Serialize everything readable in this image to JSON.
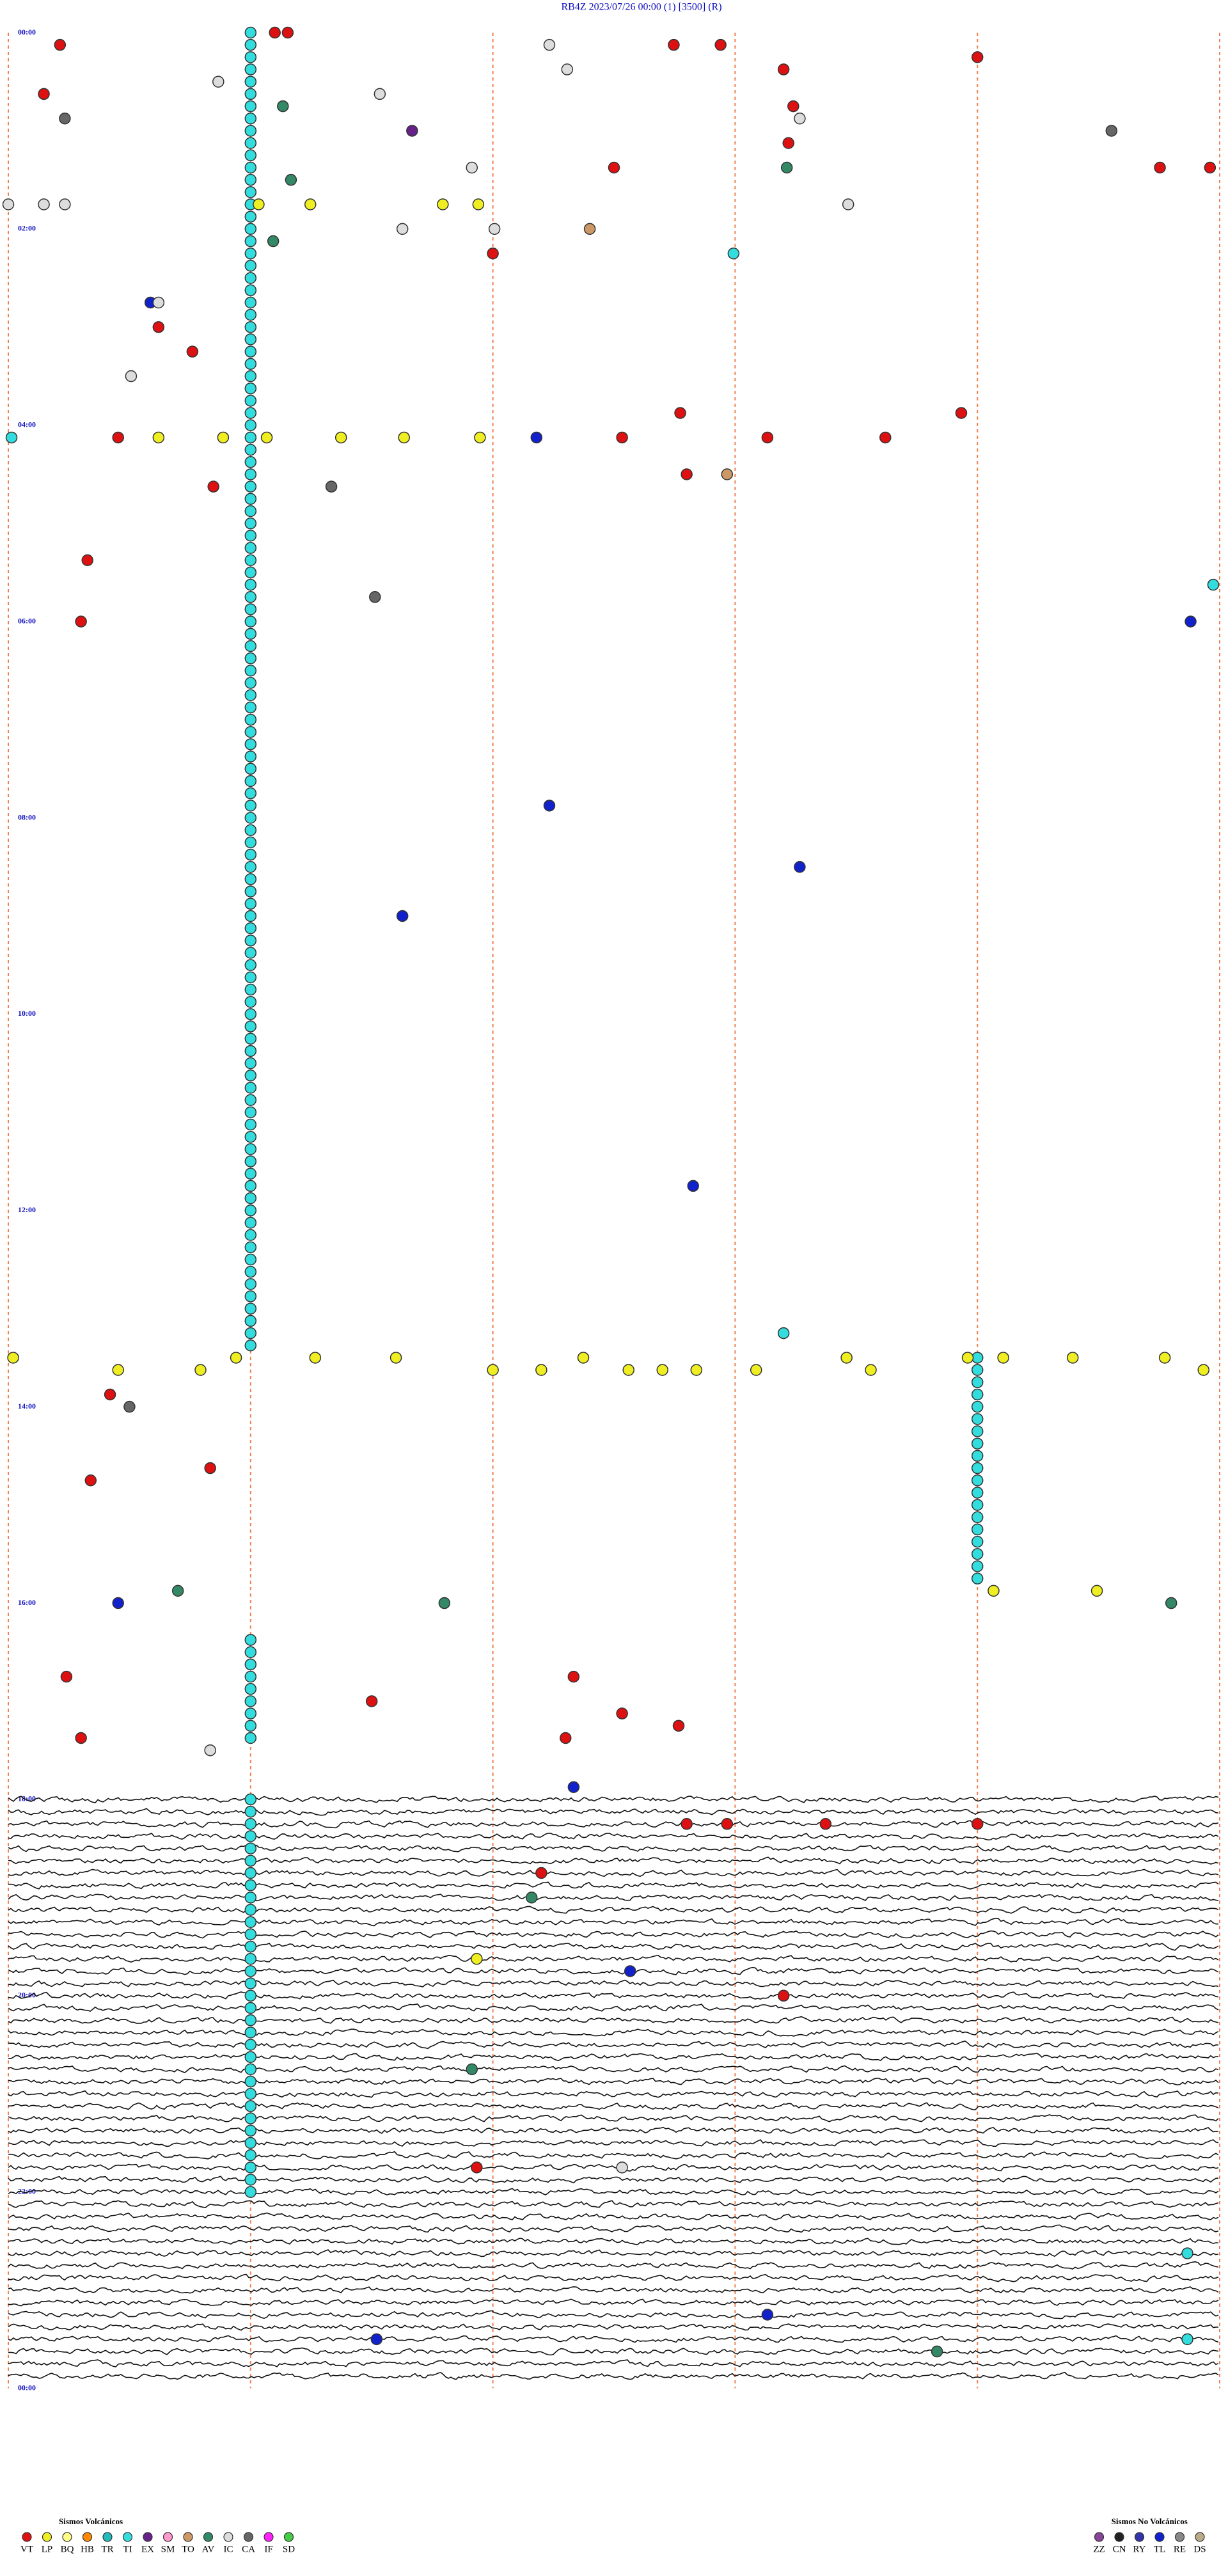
{
  "chart_data": {
    "type": "helicorder",
    "title": "RB4Z    2023/07/26 00:00    (1)    [3500]    (R)",
    "time_labels": [
      "00:00",
      "02:00",
      "04:00",
      "06:00",
      "08:00",
      "10:00",
      "12:00",
      "14:00",
      "16:00",
      "18:00",
      "20:00",
      "22:00",
      "00:00"
    ],
    "legend_volcanic": {
      "title": "Sismos Volcánicos",
      "types": [
        {
          "code": "VT",
          "color": "#dd1111"
        },
        {
          "code": "LP",
          "color": "#eeee22"
        },
        {
          "code": "BQ",
          "color": "#ffff88"
        },
        {
          "code": "HB",
          "color": "#ff8800"
        },
        {
          "code": "TR",
          "color": "#22bbbb"
        },
        {
          "code": "TI",
          "color": "#33dddd"
        },
        {
          "code": "EX",
          "color": "#662288"
        },
        {
          "code": "SM",
          "color": "#ff99cc"
        },
        {
          "code": "TO",
          "color": "#cc9966"
        },
        {
          "code": "AV",
          "color": "#338866"
        },
        {
          "code": "IC",
          "color": "#dddddd"
        },
        {
          "code": "CA",
          "color": "#666666"
        },
        {
          "code": "IF",
          "color": "#ff22ff"
        },
        {
          "code": "SD",
          "color": "#44cc44"
        }
      ]
    },
    "legend_non_volcanic": {
      "title": "Sismos No Volcánicos",
      "types": [
        {
          "code": "ZZ",
          "color": "#884499"
        },
        {
          "code": "CN",
          "color": "#222222"
        },
        {
          "code": "RY",
          "color": "#3333aa"
        },
        {
          "code": "TL",
          "color": "#1122cc"
        },
        {
          "code": "RE",
          "color": "#888888"
        },
        {
          "code": "DS",
          "color": "#bbaa88"
        }
      ]
    },
    "events": [
      [
        0,
        1.5,
        "TI"
      ],
      [
        1,
        1.5,
        "TI"
      ],
      [
        2,
        1.5,
        "TI"
      ],
      [
        3,
        1.5,
        "TI"
      ],
      [
        4,
        1.5,
        "TI"
      ],
      [
        5,
        1.5,
        "TI"
      ],
      [
        6,
        1.5,
        "TI"
      ],
      [
        7,
        1.5,
        "TI"
      ],
      [
        8,
        1.5,
        "TI"
      ],
      [
        9,
        1.5,
        "TI"
      ],
      [
        10,
        1.5,
        "TI"
      ],
      [
        11,
        1.5,
        "TI"
      ],
      [
        12,
        1.5,
        "TI"
      ],
      [
        13,
        1.5,
        "TI"
      ],
      [
        14,
        1.5,
        "TI"
      ],
      [
        15,
        1.5,
        "TI"
      ],
      [
        16,
        1.5,
        "TI"
      ],
      [
        17,
        1.5,
        "TI"
      ],
      [
        18,
        1.5,
        "TI"
      ],
      [
        19,
        1.5,
        "TI"
      ],
      [
        20,
        1.5,
        "TI"
      ],
      [
        21,
        1.5,
        "TI"
      ],
      [
        22,
        1.5,
        "TI"
      ],
      [
        23,
        1.5,
        "TI"
      ],
      [
        24,
        1.5,
        "TI"
      ],
      [
        25,
        1.5,
        "TI"
      ],
      [
        26,
        1.5,
        "TI"
      ],
      [
        27,
        1.5,
        "TI"
      ],
      [
        28,
        1.5,
        "TI"
      ],
      [
        29,
        1.5,
        "TI"
      ],
      [
        30,
        1.5,
        "TI"
      ],
      [
        31,
        1.5,
        "TI"
      ],
      [
        32,
        1.5,
        "TI"
      ],
      [
        33,
        1.5,
        "TI"
      ],
      [
        34,
        1.5,
        "TI"
      ],
      [
        35,
        1.5,
        "TI"
      ],
      [
        36,
        1.5,
        "TI"
      ],
      [
        37,
        1.5,
        "TI"
      ],
      [
        38,
        1.5,
        "TI"
      ],
      [
        39,
        1.5,
        "TI"
      ],
      [
        40,
        1.5,
        "TI"
      ],
      [
        41,
        1.5,
        "TI"
      ],
      [
        42,
        1.5,
        "TI"
      ],
      [
        43,
        1.5,
        "TI"
      ],
      [
        44,
        1.5,
        "TI"
      ],
      [
        45,
        1.5,
        "TI"
      ],
      [
        46,
        1.5,
        "TI"
      ],
      [
        47,
        1.5,
        "TI"
      ],
      [
        48,
        1.5,
        "TI"
      ],
      [
        49,
        1.5,
        "TI"
      ],
      [
        50,
        1.5,
        "TI"
      ],
      [
        51,
        1.5,
        "TI"
      ],
      [
        52,
        1.5,
        "TI"
      ],
      [
        53,
        1.5,
        "TI"
      ],
      [
        54,
        1.5,
        "TI"
      ],
      [
        55,
        1.5,
        "TI"
      ],
      [
        56,
        1.5,
        "TI"
      ],
      [
        57,
        1.5,
        "TI"
      ],
      [
        58,
        1.5,
        "TI"
      ],
      [
        59,
        1.5,
        "TI"
      ],
      [
        60,
        1.5,
        "TI"
      ],
      [
        61,
        1.5,
        "TI"
      ],
      [
        62,
        1.5,
        "TI"
      ],
      [
        63,
        1.5,
        "TI"
      ],
      [
        64,
        1.5,
        "TI"
      ],
      [
        65,
        1.5,
        "TI"
      ],
      [
        66,
        1.5,
        "TI"
      ],
      [
        67,
        1.5,
        "TI"
      ],
      [
        68,
        1.5,
        "TI"
      ],
      [
        69,
        1.5,
        "TI"
      ],
      [
        70,
        1.5,
        "TI"
      ],
      [
        71,
        1.5,
        "TI"
      ],
      [
        72,
        1.5,
        "TI"
      ],
      [
        73,
        1.5,
        "TI"
      ],
      [
        74,
        1.5,
        "TI"
      ],
      [
        75,
        1.5,
        "TI"
      ],
      [
        76,
        1.5,
        "TI"
      ],
      [
        77,
        1.5,
        "TI"
      ],
      [
        78,
        1.5,
        "TI"
      ],
      [
        79,
        1.5,
        "TI"
      ],
      [
        80,
        1.5,
        "TI"
      ],
      [
        81,
        1.5,
        "TI"
      ],
      [
        82,
        1.5,
        "TI"
      ],
      [
        83,
        1.5,
        "TI"
      ],
      [
        84,
        1.5,
        "TI"
      ],
      [
        85,
        1.5,
        "TI"
      ],
      [
        86,
        1.5,
        "TI"
      ],
      [
        87,
        1.5,
        "TI"
      ],
      [
        88,
        1.5,
        "TI"
      ],
      [
        89,
        1.5,
        "TI"
      ],
      [
        90,
        1.5,
        "TI"
      ],
      [
        91,
        1.5,
        "TI"
      ],
      [
        92,
        1.5,
        "TI"
      ],
      [
        93,
        1.5,
        "TI"
      ],
      [
        94,
        1.5,
        "TI"
      ],
      [
        95,
        1.5,
        "TI"
      ],
      [
        96,
        1.5,
        "TI"
      ],
      [
        97,
        1.5,
        "TI"
      ],
      [
        98,
        1.5,
        "TI"
      ],
      [
        99,
        1.5,
        "TI"
      ],
      [
        100,
        1.5,
        "TI"
      ],
      [
        101,
        1.5,
        "TI"
      ],
      [
        102,
        1.5,
        "TI"
      ],
      [
        103,
        1.5,
        "TI"
      ],
      [
        104,
        1.5,
        "TI"
      ],
      [
        105,
        1.5,
        "TI"
      ],
      [
        106,
        1.5,
        "TI"
      ],
      [
        107,
        1.5,
        "TI"
      ],
      [
        108,
        6.0,
        "TI"
      ],
      [
        109,
        6.0,
        "TI"
      ],
      [
        110,
        6.0,
        "TI"
      ],
      [
        111,
        6.0,
        "TI"
      ],
      [
        112,
        6.0,
        "TI"
      ],
      [
        113,
        6.0,
        "TI"
      ],
      [
        114,
        6.0,
        "TI"
      ],
      [
        115,
        6.0,
        "TI"
      ],
      [
        116,
        6.0,
        "TI"
      ],
      [
        117,
        6.0,
        "TI"
      ],
      [
        118,
        6.0,
        "TI"
      ],
      [
        119,
        6.0,
        "TI"
      ],
      [
        120,
        6.0,
        "TI"
      ],
      [
        121,
        6.0,
        "TI"
      ],
      [
        122,
        6.0,
        "TI"
      ],
      [
        123,
        6.0,
        "TI"
      ],
      [
        124,
        6.0,
        "TI"
      ],
      [
        125,
        6.0,
        "TI"
      ],
      [
        126,
        6.0,
        "TI"
      ],
      [
        131,
        1.5,
        "TI"
      ],
      [
        132,
        1.5,
        "TI"
      ],
      [
        133,
        1.5,
        "TI"
      ],
      [
        134,
        1.5,
        "TI"
      ],
      [
        135,
        1.5,
        "TI"
      ],
      [
        136,
        1.5,
        "TI"
      ],
      [
        137,
        1.5,
        "TI"
      ],
      [
        138,
        1.5,
        "TI"
      ],
      [
        139,
        1.5,
        "TI"
      ],
      [
        144,
        1.5,
        "TI"
      ],
      [
        145,
        1.5,
        "TI"
      ],
      [
        146,
        1.5,
        "TI"
      ],
      [
        147,
        1.5,
        "TI"
      ],
      [
        148,
        1.5,
        "TI"
      ],
      [
        149,
        1.5,
        "TI"
      ],
      [
        150,
        1.5,
        "TI"
      ],
      [
        151,
        1.5,
        "TI"
      ],
      [
        152,
        1.5,
        "TI"
      ],
      [
        153,
        1.5,
        "TI"
      ],
      [
        154,
        1.5,
        "TI"
      ],
      [
        155,
        1.5,
        "TI"
      ],
      [
        156,
        1.5,
        "TI"
      ],
      [
        157,
        1.5,
        "TI"
      ],
      [
        158,
        1.5,
        "TI"
      ],
      [
        159,
        1.5,
        "TI"
      ],
      [
        160,
        1.5,
        "TI"
      ],
      [
        161,
        1.5,
        "TI"
      ],
      [
        162,
        1.5,
        "TI"
      ],
      [
        163,
        1.5,
        "TI"
      ],
      [
        164,
        1.5,
        "TI"
      ],
      [
        165,
        1.5,
        "TI"
      ],
      [
        166,
        1.5,
        "TI"
      ],
      [
        167,
        1.5,
        "TI"
      ],
      [
        168,
        1.5,
        "TI"
      ],
      [
        169,
        1.5,
        "TI"
      ],
      [
        170,
        1.5,
        "TI"
      ],
      [
        171,
        1.5,
        "TI"
      ],
      [
        172,
        1.5,
        "TI"
      ],
      [
        173,
        1.5,
        "TI"
      ],
      [
        174,
        1.5,
        "TI"
      ],
      [
        175,
        1.5,
        "TI"
      ],
      [
        176,
        1.5,
        "TI"
      ],
      [
        0,
        1.65,
        "VT"
      ],
      [
        0,
        1.73,
        "VT"
      ],
      [
        1,
        0.32,
        "VT"
      ],
      [
        1,
        3.35,
        "IC"
      ],
      [
        1,
        4.12,
        "VT"
      ],
      [
        1,
        4.41,
        "VT"
      ],
      [
        2,
        6.0,
        "VT"
      ],
      [
        3,
        4.8,
        "VT"
      ],
      [
        3,
        3.46,
        "IC"
      ],
      [
        4,
        1.3,
        "IC"
      ],
      [
        5,
        0.22,
        "VT"
      ],
      [
        5,
        2.3,
        "IC"
      ],
      [
        6,
        1.7,
        "AV"
      ],
      [
        6,
        4.86,
        "VT"
      ],
      [
        7,
        0.35,
        "CA"
      ],
      [
        7,
        4.9,
        "IC"
      ],
      [
        8,
        2.5,
        "EX"
      ],
      [
        8,
        6.83,
        "CA"
      ],
      [
        9,
        4.83,
        "VT"
      ],
      [
        11,
        3.75,
        "VT"
      ],
      [
        11,
        2.87,
        "IC"
      ],
      [
        11,
        4.82,
        "AV"
      ],
      [
        11,
        7.13,
        "VT"
      ],
      [
        11,
        7.44,
        "VT"
      ],
      [
        12,
        1.75,
        "AV"
      ],
      [
        14,
        0.0,
        "IC"
      ],
      [
        14,
        0.22,
        "IC"
      ],
      [
        14,
        0.35,
        "IC"
      ],
      [
        14,
        1.55,
        "LP"
      ],
      [
        14,
        1.87,
        "LP"
      ],
      [
        14,
        2.69,
        "LP"
      ],
      [
        14,
        2.91,
        "LP"
      ],
      [
        14,
        5.2,
        "IC"
      ],
      [
        16,
        2.44,
        "IC"
      ],
      [
        16,
        3.01,
        "IC"
      ],
      [
        16,
        3.6,
        "TO"
      ],
      [
        17,
        1.64,
        "AV"
      ],
      [
        18,
        3.0,
        "VT"
      ],
      [
        18,
        4.49,
        "TI"
      ],
      [
        22,
        0.88,
        "TL"
      ],
      [
        22,
        0.93,
        "IC"
      ],
      [
        24,
        0.93,
        "VT"
      ],
      [
        26,
        1.14,
        "VT"
      ],
      [
        28,
        0.76,
        "IC"
      ],
      [
        33,
        0.02,
        "TI"
      ],
      [
        33,
        0.68,
        "VT"
      ],
      [
        33,
        0.93,
        "LP"
      ],
      [
        33,
        1.33,
        "LP"
      ],
      [
        33,
        1.6,
        "LP"
      ],
      [
        33,
        2.06,
        "LP"
      ],
      [
        33,
        2.45,
        "LP"
      ],
      [
        33,
        2.92,
        "LP"
      ],
      [
        33,
        3.27,
        "TL"
      ],
      [
        33,
        3.8,
        "VT"
      ],
      [
        33,
        4.7,
        "VT"
      ],
      [
        33,
        5.43,
        "VT"
      ],
      [
        31,
        4.16,
        "VT"
      ],
      [
        31,
        5.9,
        "VT"
      ],
      [
        36,
        4.2,
        "VT"
      ],
      [
        36,
        4.45,
        "TO"
      ],
      [
        37,
        2.0,
        "CA"
      ],
      [
        37,
        1.27,
        "VT"
      ],
      [
        43,
        0.49,
        "VT"
      ],
      [
        46,
        2.27,
        "CA"
      ],
      [
        45,
        7.46,
        "TI"
      ],
      [
        48,
        7.32,
        "TL"
      ],
      [
        48,
        0.45,
        "VT"
      ],
      [
        63,
        3.35,
        "TL"
      ],
      [
        68,
        4.9,
        "TL"
      ],
      [
        72,
        2.44,
        "TL"
      ],
      [
        94,
        4.24,
        "TL"
      ],
      [
        106,
        4.8,
        "TI"
      ],
      [
        143,
        3.5,
        "TL"
      ],
      [
        108,
        0.03,
        "LP"
      ],
      [
        109,
        0.68,
        "LP"
      ],
      [
        109,
        1.19,
        "LP"
      ],
      [
        108,
        1.41,
        "LP"
      ],
      [
        108,
        1.9,
        "LP"
      ],
      [
        108,
        2.4,
        "LP"
      ],
      [
        109,
        3.0,
        "LP"
      ],
      [
        109,
        3.3,
        "LP"
      ],
      [
        108,
        3.56,
        "LP"
      ],
      [
        109,
        3.84,
        "LP"
      ],
      [
        109,
        4.05,
        "LP"
      ],
      [
        109,
        4.26,
        "LP"
      ],
      [
        109,
        4.63,
        "LP"
      ],
      [
        108,
        5.19,
        "LP"
      ],
      [
        109,
        5.34,
        "LP"
      ],
      [
        108,
        5.94,
        "LP"
      ],
      [
        108,
        6.16,
        "LP"
      ],
      [
        108,
        6.59,
        "LP"
      ],
      [
        108,
        7.16,
        "LP"
      ],
      [
        109,
        7.4,
        "LP"
      ],
      [
        111,
        0.63,
        "VT"
      ],
      [
        112,
        0.75,
        "CA"
      ],
      [
        117,
        1.25,
        "VT"
      ],
      [
        118,
        0.51,
        "VT"
      ],
      [
        127,
        6.1,
        "LP"
      ],
      [
        127,
        6.74,
        "LP"
      ],
      [
        128,
        0.68,
        "TL"
      ],
      [
        128,
        7.2,
        "AV"
      ],
      [
        127,
        1.05,
        "AV"
      ],
      [
        128,
        2.7,
        "AV"
      ],
      [
        134,
        0.36,
        "VT"
      ],
      [
        134,
        3.5,
        "VT"
      ],
      [
        136,
        2.25,
        "VT"
      ],
      [
        137,
        3.8,
        "VT"
      ],
      [
        138,
        4.15,
        "VT"
      ],
      [
        139,
        0.45,
        "VT"
      ],
      [
        139,
        3.45,
        "VT"
      ],
      [
        140,
        1.25,
        "IC"
      ],
      [
        146,
        4.2,
        "VT"
      ],
      [
        146,
        4.45,
        "VT"
      ],
      [
        146,
        5.06,
        "VT"
      ],
      [
        146,
        6.0,
        "VT"
      ],
      [
        150,
        3.3,
        "VT"
      ],
      [
        152,
        3.24,
        "AV"
      ],
      [
        157,
        2.9,
        "LP"
      ],
      [
        158,
        3.85,
        "TL"
      ],
      [
        160,
        4.8,
        "VT"
      ],
      [
        166,
        2.87,
        "AV"
      ],
      [
        174,
        2.9,
        "VT"
      ],
      [
        174,
        3.8,
        "IC"
      ],
      [
        181,
        7.3,
        "TI"
      ],
      [
        188,
        7.3,
        "TI"
      ],
      [
        186,
        4.7,
        "TL"
      ],
      [
        188,
        2.28,
        "TL"
      ],
      [
        189,
        5.75,
        "AV"
      ]
    ]
  }
}
